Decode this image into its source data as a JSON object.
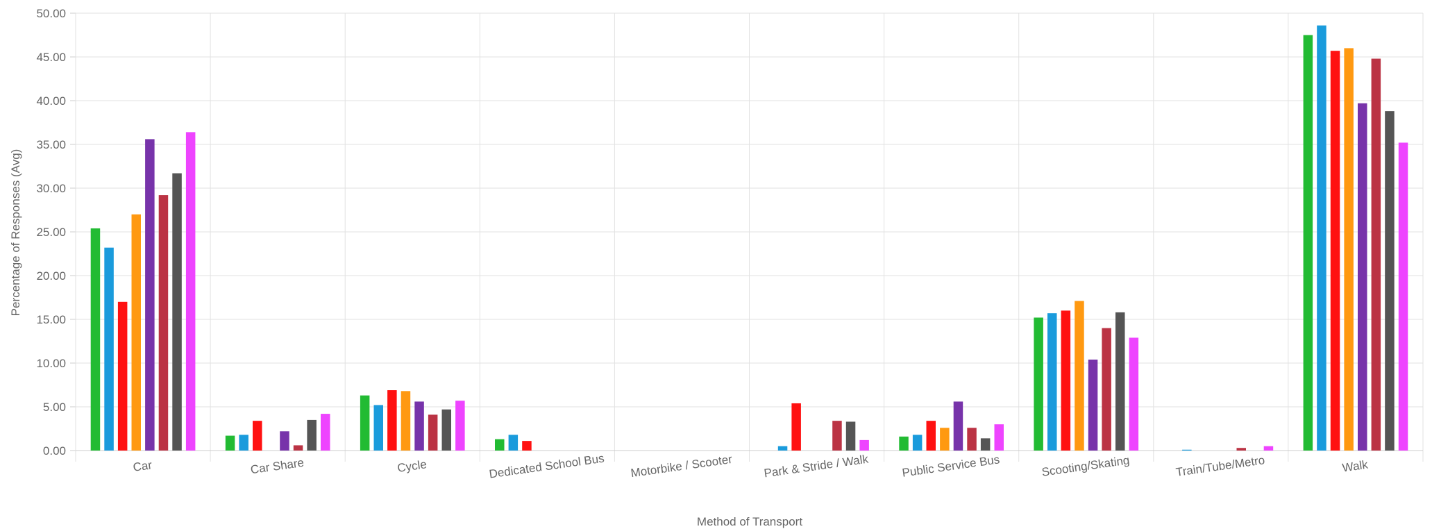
{
  "chart_data": {
    "type": "bar",
    "title": "",
    "xlabel": "Method of Transport",
    "ylabel": "Percentage of Responses (Avg)",
    "ylim": [
      0,
      50
    ],
    "y_ticks": [
      "0.00",
      "5.00",
      "10.00",
      "15.00",
      "20.00",
      "25.00",
      "30.00",
      "35.00",
      "40.00",
      "45.00",
      "50.00"
    ],
    "grid": true,
    "legend": "none",
    "categories": [
      "Car",
      "Car Share",
      "Cycle",
      "Dedicated School Bus",
      "Motorbike / Scooter",
      "Park & Stride / Walk",
      "Public Service Bus",
      "Scooting/Skating",
      "Train/Tube/Metro",
      "Walk"
    ],
    "series": [
      {
        "color": "#22bb33",
        "values": [
          25.4,
          1.7,
          6.3,
          1.3,
          0,
          0,
          1.6,
          15.2,
          0,
          47.5
        ]
      },
      {
        "color": "#1a9bdc",
        "values": [
          23.2,
          1.8,
          5.2,
          1.8,
          0,
          0.5,
          1.8,
          15.7,
          0.1,
          48.6
        ]
      },
      {
        "color": "#ff1111",
        "values": [
          17.0,
          3.4,
          6.9,
          1.1,
          0,
          5.4,
          3.4,
          16.0,
          0,
          45.7
        ]
      },
      {
        "color": "#ff9911",
        "values": [
          27.0,
          0,
          6.8,
          0,
          0,
          0,
          2.6,
          17.1,
          0,
          46.0
        ]
      },
      {
        "color": "#7733aa",
        "values": [
          35.6,
          2.2,
          5.6,
          0,
          0,
          0,
          5.6,
          10.4,
          0,
          39.7
        ]
      },
      {
        "color": "#bb3344",
        "values": [
          29.2,
          0.6,
          4.1,
          0,
          0,
          3.4,
          2.6,
          14.0,
          0.3,
          44.8
        ]
      },
      {
        "color": "#555555",
        "values": [
          31.7,
          3.5,
          4.7,
          0,
          0,
          3.3,
          1.4,
          15.8,
          0,
          38.8
        ]
      },
      {
        "color": "#ee44ff",
        "values": [
          36.4,
          4.2,
          5.7,
          0,
          0,
          1.2,
          3.0,
          12.9,
          0.5,
          35.2
        ]
      }
    ]
  }
}
